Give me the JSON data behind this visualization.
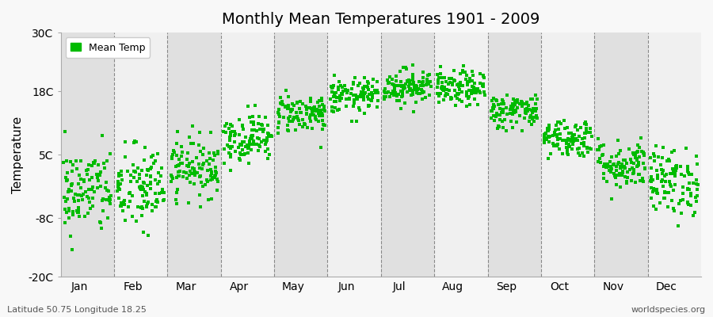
{
  "title": "Monthly Mean Temperatures 1901 - 2009",
  "ylabel": "Temperature",
  "bottom_left": "Latitude 50.75 Longitude 18.25",
  "bottom_right": "worldspecies.org",
  "legend_label": "Mean Temp",
  "dot_color": "#00bb00",
  "band_color_light": "#f0f0f0",
  "band_color_dark": "#e0e0e0",
  "outer_bg": "#f8f8f8",
  "ylim": [
    -20,
    30
  ],
  "yticks": [
    -20,
    -8,
    5,
    18,
    30
  ],
  "ytick_labels": [
    "-20C",
    "-8C",
    "5C",
    "18C",
    "30C"
  ],
  "years": 109,
  "monthly_means": [
    -2.5,
    -2.0,
    2.5,
    8.5,
    13.5,
    17.0,
    19.0,
    18.5,
    14.0,
    8.5,
    3.0,
    -0.5
  ],
  "monthly_stds": [
    4.5,
    4.5,
    3.0,
    2.5,
    2.0,
    1.8,
    1.8,
    1.8,
    1.8,
    2.0,
    2.5,
    3.5
  ],
  "month_names": [
    "Jan",
    "Feb",
    "Mar",
    "Apr",
    "May",
    "Jun",
    "Jul",
    "Aug",
    "Sep",
    "Oct",
    "Nov",
    "Dec"
  ],
  "seed": 42
}
